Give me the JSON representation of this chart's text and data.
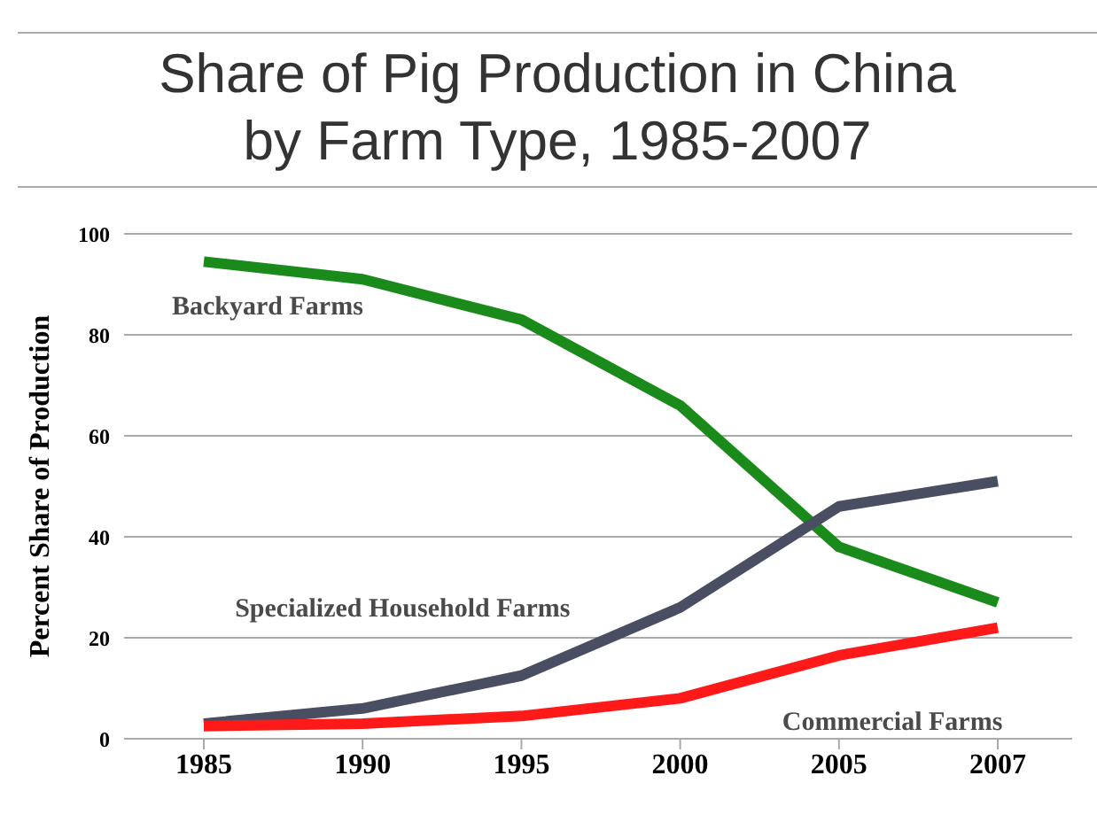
{
  "chart_data": {
    "type": "line",
    "title": "Share of Pig Production in China by Farm Type, 1985-2007",
    "ylabel": "Percent Share of Production",
    "categories": [
      "1985",
      "1990",
      "1995",
      "2000",
      "2005",
      "2007"
    ],
    "series": [
      {
        "name": "Backyard Farms",
        "color": "#1a8a1a",
        "values": [
          94.5,
          91,
          83,
          66,
          38,
          27
        ]
      },
      {
        "name": "Specialized Household Farms",
        "color": "#4a4e62",
        "values": [
          3,
          6,
          12.5,
          26,
          46,
          51
        ]
      },
      {
        "name": "Commercial Farms",
        "color": "#ff1a1a",
        "values": [
          2.5,
          3,
          4.5,
          8,
          16.5,
          22
        ]
      }
    ],
    "ylim": [
      0,
      100
    ],
    "yticks": [
      0,
      20,
      40,
      60,
      80,
      100
    ],
    "grid": "y",
    "legend": false,
    "marker": "none",
    "line_style": "solid"
  }
}
